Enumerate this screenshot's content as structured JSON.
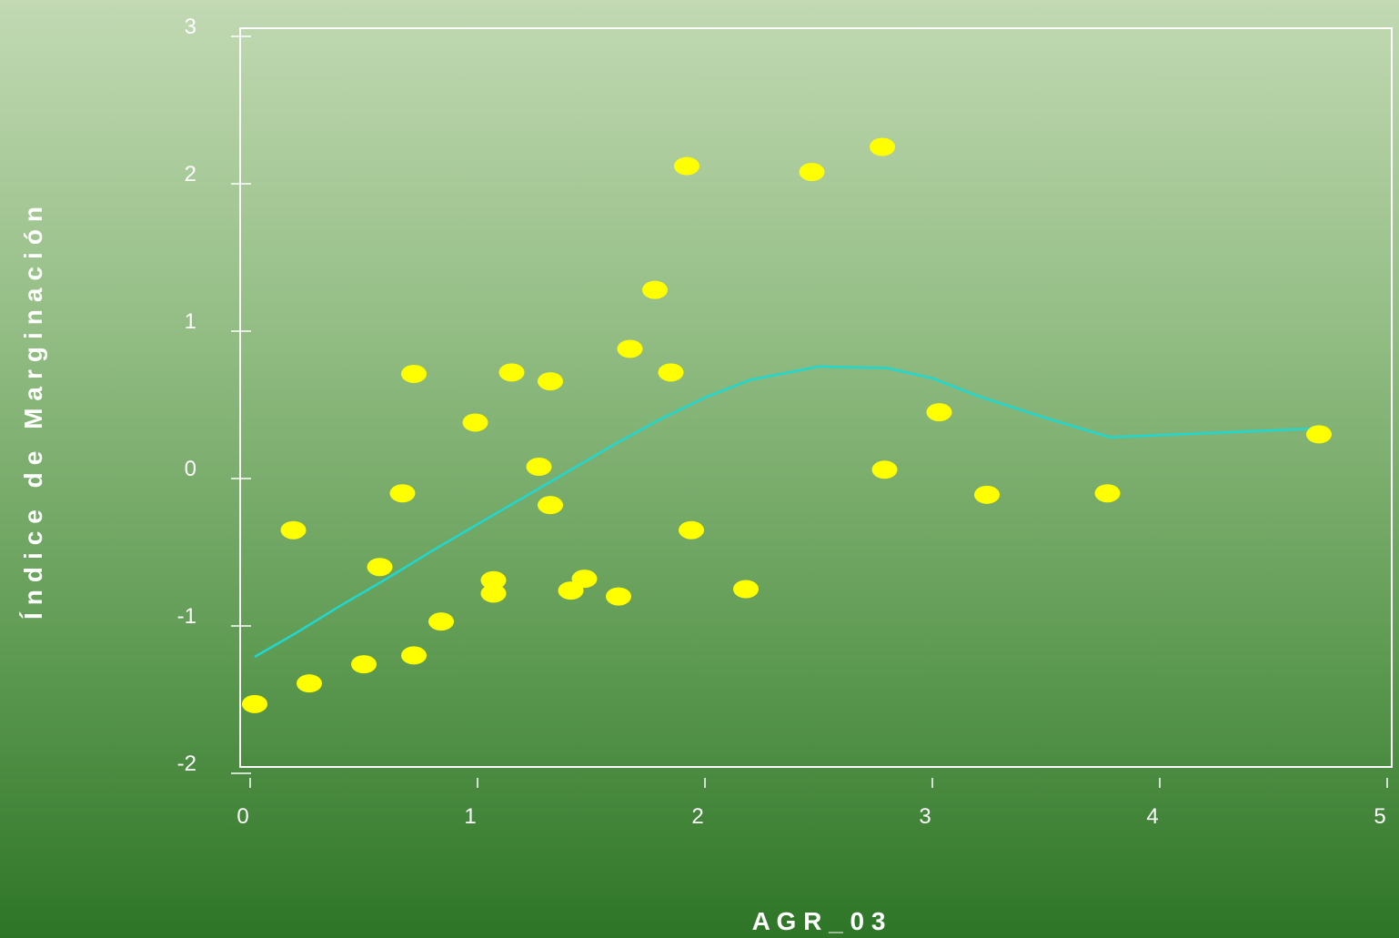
{
  "chart_data": {
    "type": "scatter",
    "xlabel": "A G R _ 0 3",
    "ylabel": "Índice de Marginación",
    "xlim": [
      0,
      5
    ],
    "ylim": [
      -2,
      3
    ],
    "xticks": [
      0,
      1,
      2,
      3,
      4,
      5
    ],
    "yticks": [
      -2,
      -1,
      0,
      1,
      2,
      3
    ],
    "grid": false,
    "colors": {
      "points": "#ffff00",
      "trend": "#1fd8d0",
      "frame": "#ffffff"
    },
    "series": [
      {
        "kind": "points",
        "x": [
          0.02,
          0.19,
          0.26,
          0.5,
          0.57,
          0.67,
          0.72,
          0.72,
          0.84,
          0.99,
          1.07,
          1.07,
          1.15,
          1.27,
          1.32,
          1.32,
          1.41,
          1.47,
          1.62,
          1.67,
          1.78,
          1.85,
          1.92,
          1.94,
          2.18,
          2.47,
          2.78,
          2.79,
          3.03,
          3.24,
          3.77,
          4.7
        ],
        "y": [
          -1.53,
          -0.35,
          -1.39,
          -1.26,
          -0.6,
          -0.1,
          0.71,
          -1.2,
          -0.97,
          0.38,
          -0.69,
          -0.78,
          0.72,
          0.08,
          0.66,
          -0.18,
          -0.76,
          -0.68,
          -0.8,
          0.88,
          1.28,
          0.72,
          2.12,
          -0.35,
          -0.75,
          2.08,
          2.25,
          0.06,
          0.45,
          -0.11,
          -0.1,
          0.3
        ]
      },
      {
        "kind": "line",
        "x": [
          0.02,
          0.2,
          0.4,
          0.6,
          0.8,
          1.0,
          1.2,
          1.4,
          1.6,
          1.8,
          2.0,
          2.2,
          2.5,
          2.8,
          3.0,
          3.2,
          3.5,
          3.78,
          4.7
        ],
        "y": [
          -1.21,
          -1.05,
          -0.86,
          -0.68,
          -0.49,
          -0.31,
          -0.13,
          0.05,
          0.23,
          0.4,
          0.55,
          0.67,
          0.76,
          0.75,
          0.68,
          0.56,
          0.41,
          0.28,
          0.34
        ]
      }
    ]
  }
}
